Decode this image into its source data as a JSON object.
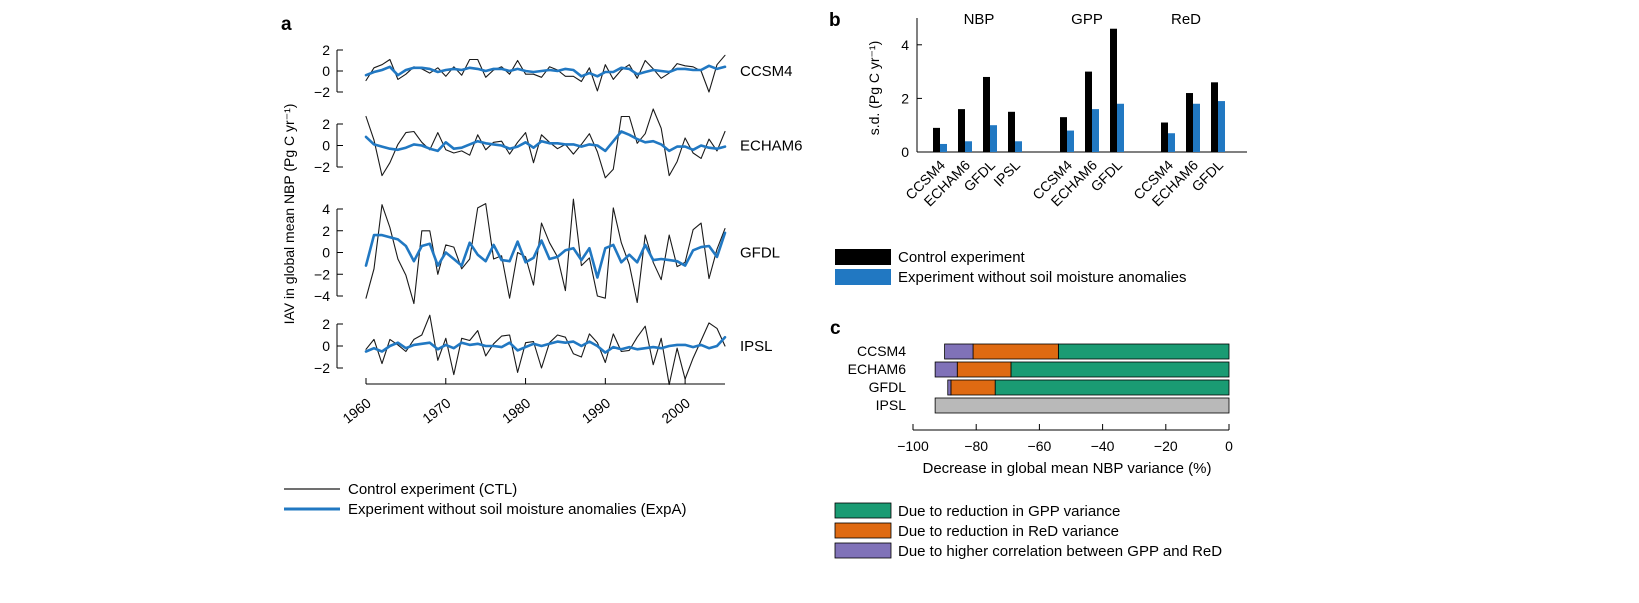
{
  "panels": {
    "a": "a",
    "b": "b",
    "c": "c"
  },
  "colors": {
    "ctl": "#1a1a1a",
    "expa": "#2178c2",
    "black_bar": "#000000",
    "gpp": "#1a9b73",
    "red": "#df6a12",
    "corr": "#8072b8",
    "ipsl": "#b9b9b9"
  },
  "chart_data": [
    {
      "type": "line",
      "panel": "a",
      "ylabel": "IAV in global mean NBP (Pg C yr⁻¹)",
      "xlim": [
        1960,
        2005
      ],
      "xticks": [
        "1960",
        "1970",
        "1980",
        "1990",
        "2000"
      ],
      "legend": [
        "Control experiment (CTL)",
        "Experiment without soil moisture anomalies (ExpA)"
      ],
      "years": [
        1960,
        1961,
        1962,
        1963,
        1964,
        1965,
        1966,
        1967,
        1968,
        1969,
        1970,
        1971,
        1972,
        1973,
        1974,
        1975,
        1976,
        1977,
        1978,
        1979,
        1980,
        1981,
        1982,
        1983,
        1984,
        1985,
        1986,
        1987,
        1988,
        1989,
        1990,
        1991,
        1992,
        1993,
        1994,
        1995,
        1996,
        1997,
        1998,
        1999,
        2000,
        2001,
        2002,
        2003,
        2004,
        2005
      ],
      "subplots": [
        {
          "name": "CCSM4",
          "ylim": [
            -2,
            2
          ],
          "yticks": [
            "2",
            "0",
            "−2"
          ],
          "series": [
            {
              "values": [
                -0.9,
                0.3,
                0.6,
                1.1,
                -0.8,
                -0.3,
                0.4,
                0.2,
                -0.2,
                0.3,
                -0.5,
                0.4,
                -0.4,
                1.1,
                1.1,
                -0.6,
                0.1,
                0.4,
                -0.3,
                1.0,
                -0.3,
                -0.3,
                -0.6,
                0.4,
                0.1,
                -0.5,
                -0.5,
                -1.0,
                0.3,
                -1.9,
                0.6,
                -0.8,
                0.1,
                0.6,
                -0.7,
                1.0,
                0.2,
                -0.7,
                -0.2,
                0.7,
                0.5,
                0.4,
                0.0,
                -2.0,
                0.6,
                1.5
              ]
            },
            {
              "values": [
                -0.4,
                -0.1,
                0.1,
                0.4,
                -0.4,
                0.1,
                0.3,
                0.3,
                0.2,
                -0.1,
                0.1,
                0.2,
                0.1,
                0.3,
                0.2,
                0.0,
                0.2,
                0.2,
                0.0,
                0.2,
                0.0,
                -0.1,
                0.0,
                0.1,
                0.0,
                0.2,
                0.1,
                -0.5,
                -0.2,
                -0.5,
                -0.1,
                -0.1,
                0.3,
                0.2,
                -0.3,
                -0.1,
                0.1,
                0.0,
                -0.1,
                0.2,
                0.2,
                0.1,
                0.1,
                0.5,
                0.2,
                0.4
              ]
            }
          ]
        },
        {
          "name": "ECHAM6",
          "ylim": [
            -2,
            2
          ],
          "yticks": [
            "2",
            "0",
            "−2"
          ],
          "series": [
            {
              "values": [
                2.7,
                0.5,
                -2.8,
                -1.6,
                0.1,
                1.2,
                1.3,
                0.3,
                -0.4,
                1.2,
                -0.4,
                -0.7,
                -0.5,
                -0.9,
                1.0,
                -0.4,
                0.3,
                0.4,
                -0.8,
                0.3,
                1.2,
                -1.6,
                1.0,
                0.3,
                -0.3,
                0.1,
                -0.8,
                0.1,
                1.1,
                -0.6,
                -3.0,
                -2.2,
                2.7,
                2.7,
                0.2,
                1.1,
                3.4,
                1.6,
                -2.8,
                -1.5,
                0.7,
                -0.7,
                -1.2,
                0.6,
                -0.5,
                1.3
              ]
            },
            {
              "values": [
                0.8,
                0.1,
                -0.1,
                -0.3,
                -0.4,
                -0.2,
                0.1,
                0.0,
                -0.3,
                -0.5,
                0.3,
                -0.3,
                -0.2,
                0.1,
                0.4,
                0.2,
                0.1,
                0.0,
                -0.3,
                -0.1,
                0.3,
                -0.2,
                0.4,
                0.2,
                0.2,
                0.1,
                0.1,
                -0.1,
                0.1,
                0.0,
                -0.5,
                0.4,
                1.3,
                1.0,
                0.6,
                0.3,
                0.4,
                0.1,
                -0.5,
                -0.1,
                -0.1,
                -0.4,
                0.0,
                -0.2,
                -0.3,
                -0.1
              ]
            }
          ]
        },
        {
          "name": "GFDL",
          "ylim": [
            -4,
            4
          ],
          "yticks": [
            "4",
            "2",
            "0",
            "−2",
            "−4"
          ],
          "series": [
            {
              "values": [
                -4.2,
                -1.5,
                4.4,
                2.3,
                -0.6,
                -2.1,
                -4.7,
                2.0,
                2.0,
                -2.0,
                0.7,
                0.5,
                -1.5,
                -0.6,
                4.1,
                4.5,
                -0.6,
                -0.3,
                -4.2,
                0.0,
                -0.4,
                -3.0,
                2.7,
                0.9,
                -0.4,
                -3.5,
                4.9,
                -1.2,
                -0.5,
                -4.0,
                -4.2,
                4.1,
                0.9,
                -1.1,
                -4.6,
                1.6,
                -0.9,
                -2.5,
                1.6,
                -1.3,
                -0.9,
                2.1,
                2.7,
                -2.4,
                0.3,
                2.2
              ]
            },
            {
              "values": [
                -1.2,
                1.6,
                1.6,
                1.4,
                1.2,
                0.6,
                -0.8,
                0.6,
                0.8,
                -1.2,
                0.0,
                -0.6,
                -1.2,
                0.9,
                -0.2,
                -0.8,
                0.7,
                -0.7,
                -0.8,
                1.0,
                -0.9,
                -0.5,
                1.1,
                -0.6,
                -0.4,
                0.2,
                0.4,
                -0.7,
                0.4,
                -2.3,
                0.4,
                0.7,
                -0.9,
                -0.2,
                -0.9,
                0.7,
                -0.7,
                -0.6,
                -0.7,
                -0.8,
                -1.2,
                0.2,
                0.5,
                0.6,
                -0.4,
                1.8
              ]
            }
          ]
        },
        {
          "name": "IPSL",
          "ylim": [
            -2,
            2
          ],
          "yticks": [
            "2",
            "0",
            "−2"
          ],
          "series": [
            {
              "values": [
                -0.3,
                0.6,
                -1.6,
                0.6,
                0.1,
                -0.5,
                0.6,
                1.0,
                2.8,
                -1.3,
                0.7,
                -2.6,
                0.7,
                0.5,
                1.4,
                -0.9,
                0.2,
                0.9,
                1.0,
                -2.4,
                0.3,
                0.4,
                -2.0,
                0.3,
                1.0,
                0.8,
                -0.7,
                -1.0,
                1.1,
                0.3,
                -1.5,
                1.1,
                -0.5,
                -0.4,
                0.8,
                1.8,
                -1.7,
                0.7,
                -3.5,
                -0.2,
                -3.0,
                -1.1,
                0.5,
                2.1,
                1.6,
                0.0
              ]
            },
            {
              "values": [
                -0.5,
                -0.2,
                -0.5,
                0.0,
                0.3,
                -0.2,
                0.1,
                0.2,
                0.3,
                -0.3,
                0.1,
                -0.2,
                0.3,
                0.1,
                0.2,
                0.0,
                0.0,
                -0.1,
                0.3,
                -0.4,
                -0.1,
                0.2,
                0.0,
                0.2,
                0.4,
                0.3,
                0.4,
                0.0,
                0.4,
                0.0,
                -0.6,
                -0.1,
                -0.3,
                -0.1,
                -0.3,
                -0.2,
                -0.1,
                -0.2,
                0.0,
                0.1,
                0.1,
                -0.1,
                0.1,
                -0.2,
                0.0,
                0.8
              ]
            }
          ]
        }
      ]
    },
    {
      "type": "bar",
      "panel": "b",
      "ylabel": "s.d. (Pg C yr⁻¹)",
      "ylim": [
        0,
        5
      ],
      "yticks": [
        "0",
        "2",
        "4"
      ],
      "legend": [
        "Control experiment",
        "Experiment without soil moisture anomalies"
      ],
      "groups": [
        {
          "name": "NBP",
          "categories": [
            "CCSM4",
            "ECHAM6",
            "GFDL",
            "IPSL"
          ],
          "series": [
            {
              "values": [
                0.9,
                1.6,
                2.8,
                1.5
              ]
            },
            {
              "values": [
                0.3,
                0.4,
                1.0,
                0.4
              ]
            }
          ]
        },
        {
          "name": "GPP",
          "categories": [
            "CCSM4",
            "ECHAM6",
            "GFDL"
          ],
          "series": [
            {
              "values": [
                1.3,
                3.0,
                4.6
              ]
            },
            {
              "values": [
                0.8,
                1.6,
                1.8
              ]
            }
          ]
        },
        {
          "name": "ReD",
          "categories": [
            "CCSM4",
            "ECHAM6",
            "GFDL"
          ],
          "series": [
            {
              "values": [
                1.1,
                2.2,
                2.6
              ]
            },
            {
              "values": [
                0.7,
                1.8,
                1.9
              ]
            }
          ]
        }
      ]
    },
    {
      "type": "bar",
      "panel": "c",
      "orientation": "horizontal",
      "xlabel": "Decrease in global mean NBP variance (%)",
      "xlim": [
        -100,
        0
      ],
      "xticks": [
        "−100",
        "−80",
        "−60",
        "−40",
        "−20",
        "0"
      ],
      "categories": [
        "CCSM4",
        "ECHAM6",
        "GFDL",
        "IPSL"
      ],
      "legend": [
        "Due to reduction in GPP variance",
        "Due to reduction in ReD variance",
        "Due to higher correlation between GPP and ReD"
      ],
      "series": [
        {
          "values": [
            -54,
            -69,
            -74,
            0
          ]
        },
        {
          "values": [
            -27,
            -17,
            -14,
            0
          ]
        },
        {
          "values": [
            -9,
            -7,
            -1,
            0
          ]
        }
      ],
      "ipsl_total": -93
    }
  ]
}
